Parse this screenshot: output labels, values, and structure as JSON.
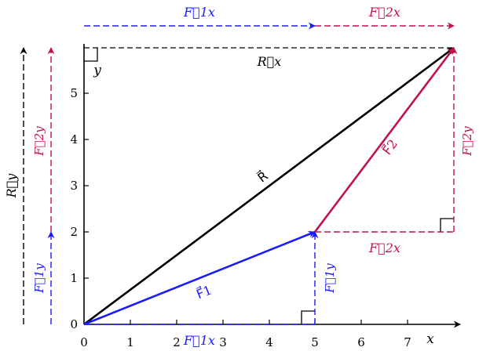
{
  "colors": {
    "black": "#000000",
    "f1": "#1a1aff",
    "f2": "#c0104e"
  },
  "vectors": {
    "F1": {
      "from": [
        0,
        0
      ],
      "to": [
        5,
        2
      ],
      "label": "F⃗1"
    },
    "F2": {
      "from": [
        5,
        2
      ],
      "to": [
        8,
        6
      ],
      "label": "F⃗2"
    },
    "R": {
      "from": [
        0,
        0
      ],
      "to": [
        8,
        6
      ],
      "label": "R⃗"
    }
  },
  "labels": {
    "F1x": "F⃗1x",
    "F2x": "F⃗2x",
    "F1y": "F⃗1y",
    "F2y": "F⃗2y",
    "Rx": "R⃗x",
    "Ry": "R⃗y",
    "x_axis": "x",
    "y_axis": "y"
  },
  "axes": {
    "x_ticks": [
      "0",
      "1",
      "2",
      "3",
      "4",
      "5",
      "6",
      "7"
    ],
    "y_ticks": [
      "0",
      "1",
      "2",
      "3",
      "4",
      "5"
    ]
  }
}
